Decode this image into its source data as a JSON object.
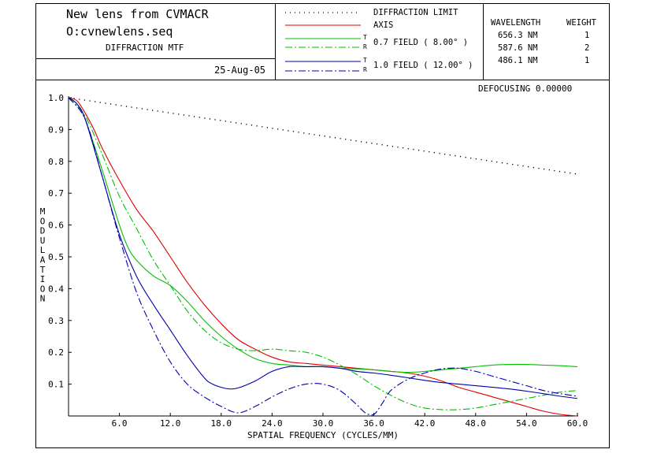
{
  "header": {
    "title": "New lens from CVMACR",
    "filename": "O:cvnewlens.seq",
    "subtitle": "DIFFRACTION MTF",
    "date": "25-Aug-05"
  },
  "legend": {
    "diffraction_label": "DIFFRACTION LIMIT",
    "axis_label": "AXIS",
    "field07_label": "0.7 FIELD ( 8.00° )",
    "field10_label": "1.0 FIELD ( 12.00° )",
    "t_mark": "T",
    "r_mark": "R"
  },
  "wavelength_table": {
    "wavelength_header": "WAVELENGTH",
    "weight_header": "WEIGHT",
    "rows": [
      {
        "wavelength": "656.3 NM",
        "weight": "1"
      },
      {
        "wavelength": "587.6 NM",
        "weight": "2"
      },
      {
        "wavelength": "486.1 NM",
        "weight": "1"
      }
    ]
  },
  "defocusing": "DEFOCUSING  0.00000",
  "colors": {
    "diffraction": "#000000",
    "axis": "#e00000",
    "field07": "#00c000",
    "field10": "#0000b0"
  },
  "chart_data": {
    "type": "line",
    "xlabel": "SPATIAL FREQUENCY (CYCLES/MM)",
    "ylabel": "MODULATION",
    "xlim": [
      0,
      60
    ],
    "ylim": [
      0,
      1
    ],
    "xticks": [
      "6.0",
      "12.0",
      "18.0",
      "24.0",
      "30.0",
      "36.0",
      "42.0",
      "48.0",
      "54.0",
      "60.0"
    ],
    "yticks": [
      "1.0",
      "0.9",
      "0.8",
      "0.7",
      "0.6",
      "0.5",
      "0.4",
      "0.3",
      "0.2",
      "0.1"
    ],
    "series": [
      {
        "name": "DIFFRACTION LIMIT",
        "color": "#000000",
        "style": "dotted",
        "x": [
          0,
          10,
          20,
          30,
          40,
          50,
          60
        ],
        "y": [
          1.0,
          0.96,
          0.92,
          0.88,
          0.84,
          0.8,
          0.76
        ]
      },
      {
        "name": "AXIS",
        "color": "#e00000",
        "style": "solid",
        "x": [
          0,
          1,
          2,
          3,
          4,
          6,
          8,
          10,
          12,
          14,
          16,
          18,
          20,
          22,
          24,
          26,
          28,
          30,
          32,
          34,
          36,
          38,
          40,
          42,
          44,
          46,
          48,
          50,
          52,
          54,
          56,
          58,
          60
        ],
        "y": [
          1.0,
          0.99,
          0.95,
          0.9,
          0.84,
          0.74,
          0.65,
          0.58,
          0.5,
          0.42,
          0.35,
          0.29,
          0.24,
          0.21,
          0.185,
          0.17,
          0.165,
          0.16,
          0.155,
          0.15,
          0.145,
          0.14,
          0.135,
          0.125,
          0.11,
          0.09,
          0.075,
          0.06,
          0.045,
          0.03,
          0.015,
          0.005,
          0.0
        ]
      },
      {
        "name": "0.7 FIELD T",
        "color": "#00c000",
        "style": "solid",
        "x": [
          0,
          1,
          2,
          4,
          6,
          7,
          8,
          10,
          12,
          14,
          16,
          18,
          20,
          22,
          24,
          26,
          28,
          30,
          32,
          34,
          36,
          38,
          40,
          42,
          44,
          46,
          48,
          50,
          52,
          54,
          56,
          58,
          60
        ],
        "y": [
          1.0,
          0.98,
          0.93,
          0.77,
          0.6,
          0.53,
          0.49,
          0.44,
          0.41,
          0.36,
          0.3,
          0.25,
          0.21,
          0.18,
          0.165,
          0.16,
          0.155,
          0.155,
          0.15,
          0.148,
          0.145,
          0.14,
          0.137,
          0.14,
          0.145,
          0.15,
          0.155,
          0.16,
          0.162,
          0.162,
          0.16,
          0.158,
          0.155
        ]
      },
      {
        "name": "0.7 FIELD R",
        "color": "#00c000",
        "style": "dashdot",
        "x": [
          0,
          2,
          4,
          6,
          8,
          10,
          12,
          14,
          16,
          18,
          20,
          22,
          24,
          26,
          28,
          30,
          32,
          34,
          36,
          38,
          40,
          42,
          44,
          46,
          48,
          50,
          52,
          54,
          56,
          58,
          60
        ],
        "y": [
          1.0,
          0.94,
          0.82,
          0.69,
          0.59,
          0.49,
          0.41,
          0.33,
          0.27,
          0.23,
          0.21,
          0.205,
          0.21,
          0.205,
          0.2,
          0.185,
          0.16,
          0.13,
          0.095,
          0.065,
          0.04,
          0.025,
          0.02,
          0.02,
          0.025,
          0.035,
          0.045,
          0.055,
          0.065,
          0.075,
          0.08
        ]
      },
      {
        "name": "1.0 FIELD T",
        "color": "#0000b0",
        "style": "solid",
        "x": [
          0,
          1,
          2,
          4,
          6,
          8,
          10,
          12,
          14,
          16,
          17,
          18,
          19,
          20,
          22,
          24,
          26,
          28,
          30,
          32,
          34,
          36,
          38,
          40,
          42,
          44,
          46,
          48,
          50,
          52,
          54,
          56,
          58,
          60
        ],
        "y": [
          1.0,
          0.98,
          0.93,
          0.75,
          0.57,
          0.44,
          0.35,
          0.27,
          0.19,
          0.12,
          0.1,
          0.09,
          0.085,
          0.088,
          0.11,
          0.14,
          0.155,
          0.155,
          0.155,
          0.15,
          0.14,
          0.135,
          0.128,
          0.12,
          0.112,
          0.105,
          0.1,
          0.095,
          0.09,
          0.085,
          0.078,
          0.07,
          0.062,
          0.055
        ]
      },
      {
        "name": "1.0 FIELD R",
        "color": "#0000b0",
        "style": "dashdot",
        "x": [
          0,
          2,
          4,
          6,
          8,
          10,
          12,
          14,
          16,
          18,
          20,
          22,
          24,
          26,
          28,
          30,
          32,
          34,
          35,
          36,
          37,
          38,
          40,
          42,
          44,
          46,
          48,
          50,
          52,
          54,
          56,
          58,
          60
        ],
        "y": [
          1.0,
          0.93,
          0.75,
          0.56,
          0.39,
          0.27,
          0.17,
          0.1,
          0.06,
          0.03,
          0.01,
          0.03,
          0.06,
          0.085,
          0.1,
          0.1,
          0.08,
          0.035,
          0.01,
          0.005,
          0.04,
          0.08,
          0.115,
          0.135,
          0.148,
          0.15,
          0.14,
          0.125,
          0.11,
          0.095,
          0.08,
          0.07,
          0.062
        ]
      }
    ]
  }
}
